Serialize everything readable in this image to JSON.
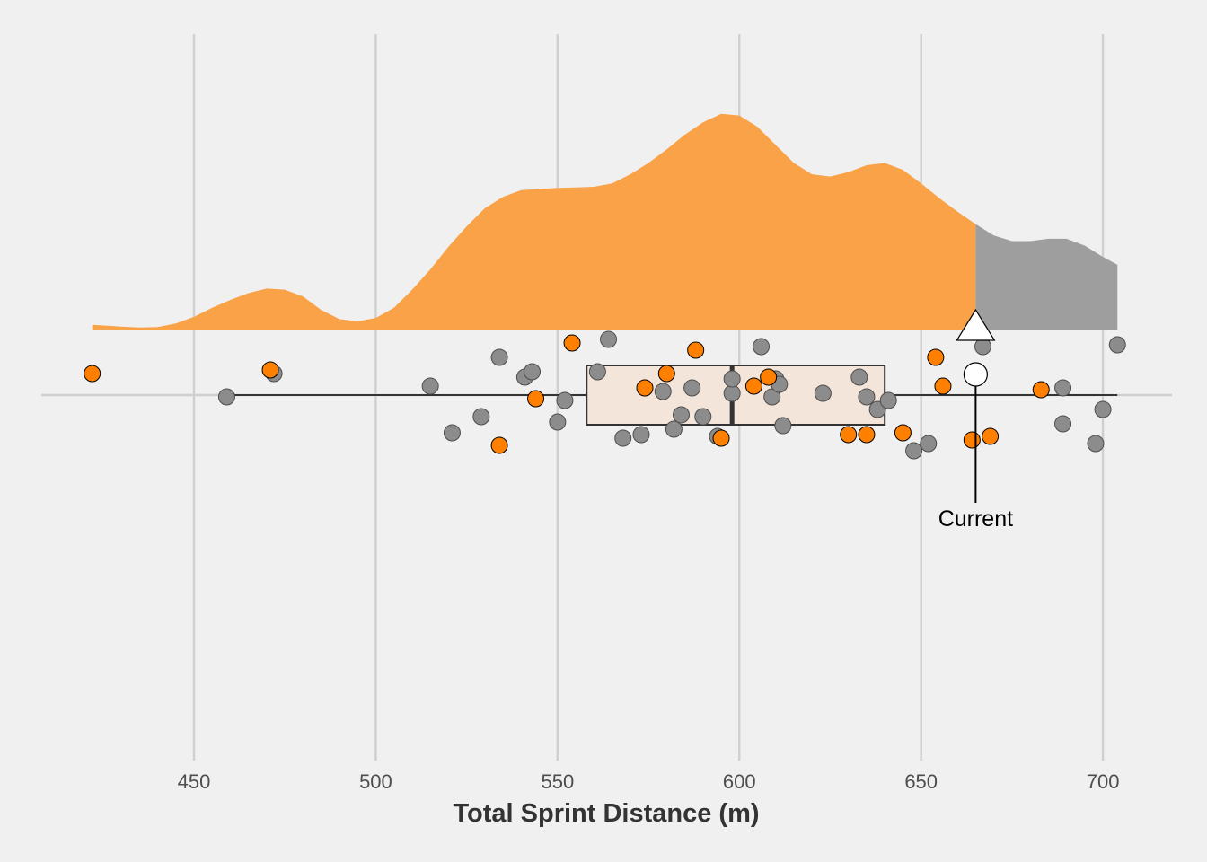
{
  "chart_data": {
    "type": "scatter",
    "xlabel": "Total Sprint Distance (m)",
    "xlim": [
      408,
      719
    ],
    "x_ticks": [
      450,
      500,
      550,
      600,
      650,
      700
    ],
    "x_tick_labels": [
      "450",
      "500",
      "550",
      "600",
      "650",
      "700"
    ],
    "grid": true,
    "colors": {
      "background": "#f0f0f0",
      "grid": "#d0d0d0",
      "highlight": "#ff7f00",
      "density_highlight": "#f9a247",
      "density_rest": "#9e9e9e",
      "other_points": "#8c8c8c",
      "box_fill": "#f3e5d9",
      "box_stroke": "#333333"
    },
    "density": {
      "x_min": 422,
      "x_max": 704,
      "split_at": 665,
      "x": [
        422,
        425,
        430,
        435,
        440,
        445,
        450,
        455,
        460,
        465,
        470,
        475,
        480,
        485,
        490,
        495,
        500,
        505,
        510,
        515,
        520,
        525,
        530,
        535,
        540,
        545,
        550,
        555,
        560,
        565,
        570,
        575,
        580,
        585,
        590,
        595,
        600,
        605,
        610,
        615,
        620,
        625,
        630,
        635,
        640,
        645,
        650,
        655,
        660,
        665,
        670,
        675,
        680,
        685,
        690,
        695,
        700,
        704
      ],
      "y": [
        0.025,
        0.022,
        0.017,
        0.013,
        0.015,
        0.031,
        0.06,
        0.1,
        0.135,
        0.165,
        0.185,
        0.18,
        0.15,
        0.09,
        0.05,
        0.04,
        0.055,
        0.1,
        0.18,
        0.27,
        0.37,
        0.46,
        0.54,
        0.59,
        0.62,
        0.625,
        0.63,
        0.632,
        0.635,
        0.65,
        0.69,
        0.74,
        0.8,
        0.865,
        0.92,
        0.957,
        0.95,
        0.9,
        0.82,
        0.74,
        0.69,
        0.68,
        0.7,
        0.73,
        0.74,
        0.71,
        0.65,
        0.585,
        0.525,
        0.47,
        0.42,
        0.395,
        0.395,
        0.405,
        0.405,
        0.375,
        0.325,
        0.29
      ]
    },
    "whisker": {
      "min": 459,
      "max": 704
    },
    "box": {
      "q1": 558,
      "median": 598,
      "q3": 640
    },
    "highlighted_points": [
      {
        "x": 422,
        "y": 0.12
      },
      {
        "x": 471,
        "y": 0.14
      },
      {
        "x": 534,
        "y": -0.28
      },
      {
        "x": 544,
        "y": -0.02
      },
      {
        "x": 554,
        "y": 0.29
      },
      {
        "x": 574,
        "y": 0.04
      },
      {
        "x": 580,
        "y": 0.12
      },
      {
        "x": 588,
        "y": 0.25
      },
      {
        "x": 595,
        "y": -0.24
      },
      {
        "x": 604,
        "y": 0.05
      },
      {
        "x": 608,
        "y": 0.1
      },
      {
        "x": 630,
        "y": -0.22
      },
      {
        "x": 635,
        "y": -0.22
      },
      {
        "x": 645,
        "y": -0.21
      },
      {
        "x": 654,
        "y": 0.21
      },
      {
        "x": 656,
        "y": 0.05
      },
      {
        "x": 664,
        "y": -0.25
      },
      {
        "x": 669,
        "y": -0.23
      },
      {
        "x": 683,
        "y": 0.03
      }
    ],
    "other_points": [
      {
        "x": 459,
        "y": -0.01
      },
      {
        "x": 472,
        "y": 0.12
      },
      {
        "x": 515,
        "y": 0.05
      },
      {
        "x": 521,
        "y": -0.21
      },
      {
        "x": 529,
        "y": -0.12
      },
      {
        "x": 534,
        "y": 0.21
      },
      {
        "x": 541,
        "y": 0.1
      },
      {
        "x": 543,
        "y": 0.13
      },
      {
        "x": 550,
        "y": -0.15
      },
      {
        "x": 552,
        "y": -0.03
      },
      {
        "x": 561,
        "y": 0.13
      },
      {
        "x": 564,
        "y": 0.31
      },
      {
        "x": 568,
        "y": -0.24
      },
      {
        "x": 573,
        "y": -0.22
      },
      {
        "x": 579,
        "y": 0.02
      },
      {
        "x": 582,
        "y": -0.19
      },
      {
        "x": 584,
        "y": -0.11
      },
      {
        "x": 587,
        "y": 0.04
      },
      {
        "x": 590,
        "y": -0.12
      },
      {
        "x": 594,
        "y": -0.23
      },
      {
        "x": 598,
        "y": 0.01
      },
      {
        "x": 598,
        "y": 0.09
      },
      {
        "x": 606,
        "y": 0.27
      },
      {
        "x": 609,
        "y": -0.01
      },
      {
        "x": 610,
        "y": 0.09
      },
      {
        "x": 611,
        "y": 0.06
      },
      {
        "x": 612,
        "y": -0.17
      },
      {
        "x": 623,
        "y": 0.01
      },
      {
        "x": 633,
        "y": 0.1
      },
      {
        "x": 635,
        "y": -0.01
      },
      {
        "x": 638,
        "y": -0.08
      },
      {
        "x": 641,
        "y": -0.03
      },
      {
        "x": 648,
        "y": -0.31
      },
      {
        "x": 652,
        "y": -0.27
      },
      {
        "x": 667,
        "y": 0.27
      },
      {
        "x": 689,
        "y": 0.04
      },
      {
        "x": 689,
        "y": -0.16
      },
      {
        "x": 698,
        "y": -0.27
      },
      {
        "x": 700,
        "y": -0.08
      },
      {
        "x": 704,
        "y": 0.28
      }
    ],
    "current": {
      "x": 665,
      "label": "Current"
    }
  }
}
